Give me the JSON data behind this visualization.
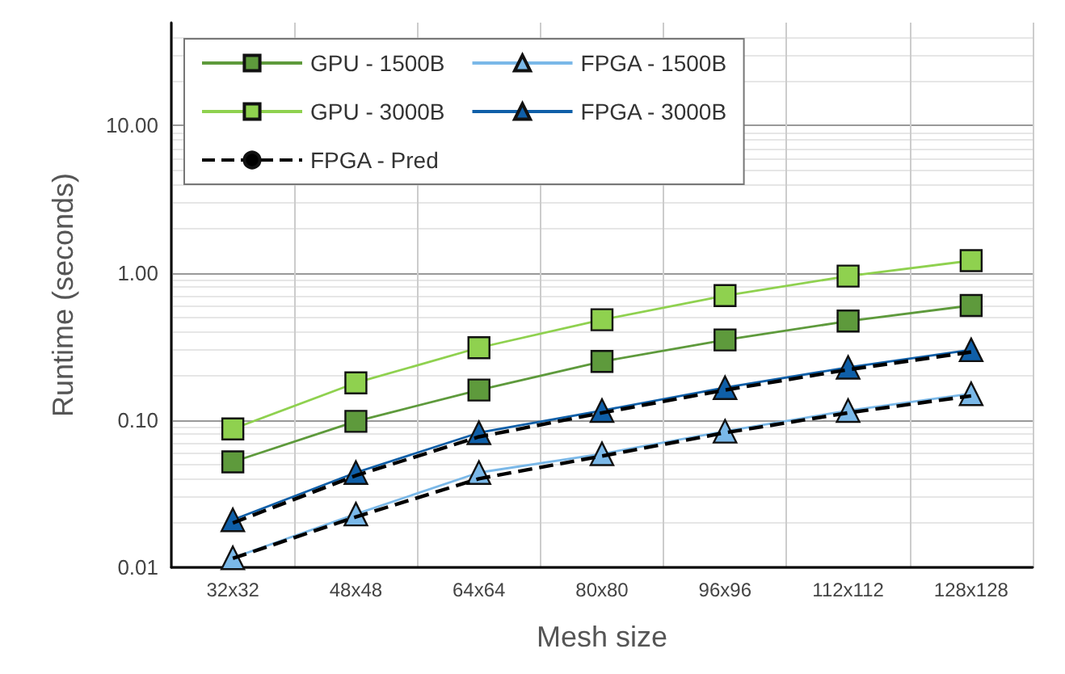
{
  "chart_data": {
    "type": "line",
    "xlabel": "Mesh size",
    "ylabel": "Runtime (seconds)",
    "categories": [
      "32x32",
      "48x48",
      "64x64",
      "80x80",
      "96x96",
      "112x112",
      "128x128"
    ],
    "series": [
      {
        "name": "GPU - 1500B",
        "color": "#5e9a3c",
        "marker": "square",
        "values": [
          0.052,
          0.098,
          0.16,
          0.25,
          0.35,
          0.47,
          0.6
        ]
      },
      {
        "name": "FPGA - 1500B",
        "color": "#7ab8e8",
        "marker": "triangle",
        "values": [
          0.0116,
          0.023,
          0.044,
          0.059,
          0.084,
          0.116,
          0.151
        ]
      },
      {
        "name": "GPU - 3000B",
        "color": "#8fd14f",
        "marker": "square",
        "values": [
          0.087,
          0.179,
          0.31,
          0.48,
          0.7,
          0.95,
          1.21
        ]
      },
      {
        "name": "FPGA - 3000B",
        "color": "#0f5fa8",
        "marker": "triangle",
        "values": [
          0.021,
          0.044,
          0.082,
          0.116,
          0.166,
          0.228,
          0.3
        ]
      },
      {
        "name": "FPGA - Pred",
        "color": "#000000",
        "marker": "none",
        "line_style": "dashed",
        "values": [
          0.0115,
          0.022,
          0.04,
          0.057,
          0.082,
          0.112,
          0.146
        ]
      },
      {
        "color": "#000000",
        "marker": "none",
        "line_style": "dashed",
        "values": [
          0.02,
          0.042,
          0.077,
          0.112,
          0.16,
          0.22,
          0.29
        ]
      }
    ],
    "log": "y",
    "ylim": [
      0.01,
      50
    ],
    "yticks": [
      {
        "value": 0.01,
        "label": "0.01"
      },
      {
        "value": 0.1,
        "label": "0.10"
      },
      {
        "value": 1,
        "label": "1.00"
      },
      {
        "value": 10,
        "label": "10.00"
      }
    ],
    "grid": true,
    "legend": "top left"
  }
}
